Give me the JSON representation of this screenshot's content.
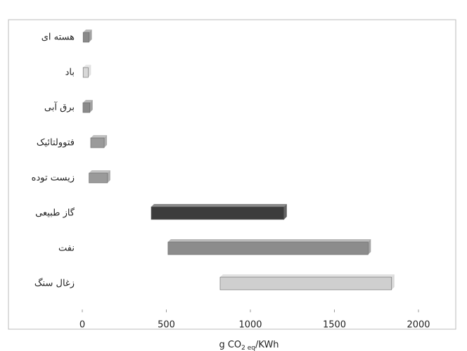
{
  "chart_data": {
    "type": "range-bar",
    "categories": [
      "هسته ای",
      "باد",
      "برق آبی",
      "فتوولتائیک",
      "زیست توده",
      "گاز طبیعی",
      "نفت",
      "زغال سنگ"
    ],
    "values": [
      [
        5,
        40
      ],
      [
        5,
        35
      ],
      [
        4,
        45
      ],
      [
        50,
        130
      ],
      [
        40,
        150
      ],
      [
        410,
        1200
      ],
      [
        510,
        1700
      ],
      [
        820,
        1840
      ]
    ],
    "colors": [
      "#8a8a8a",
      "#d8d8d8",
      "#8a8a8a",
      "#9a9a9a",
      "#9a9a9a",
      "#3c3c3c",
      "#8c8c8c",
      "#cfcfcf"
    ],
    "xlabel": {
      "main": "g CO",
      "sub": "2 eq",
      "end": "/KWh"
    },
    "xlim": [
      0,
      2000
    ],
    "xticks": [
      0,
      500,
      1000,
      1500,
      2000
    ]
  }
}
